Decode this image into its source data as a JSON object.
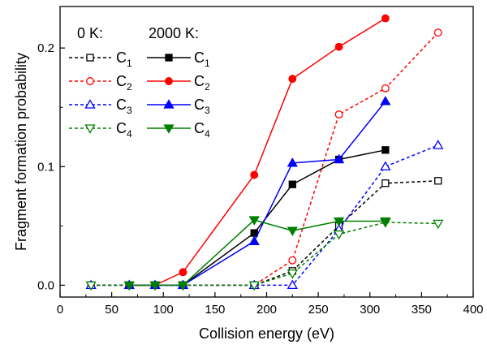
{
  "chart_data": {
    "type": "line",
    "title": "",
    "xlabel": "Collision energy (eV)",
    "ylabel": "Fragment formation probability",
    "xlim": [
      0,
      400
    ],
    "ylim": [
      -0.01,
      0.235
    ],
    "xticks": [
      0,
      50,
      100,
      150,
      200,
      250,
      300,
      350,
      400
    ],
    "xtick_labels": [
      "0",
      "50",
      "100",
      "150",
      "200",
      "250",
      "300",
      "350",
      "400"
    ],
    "yticks": [
      0.0,
      0.1,
      0.2
    ],
    "ytick_labels": [
      "0.0",
      "0.1",
      "0.2"
    ],
    "grid": false,
    "legend": {
      "placement": "top-left",
      "header_0K": "0 K:",
      "header_2000K": "2000 K:"
    },
    "series": [
      {
        "name": "C1",
        "group": "0 K",
        "label_main": "C",
        "label_sub": "1",
        "color": "#000000",
        "style": "dashed",
        "marker": "square",
        "filled": false,
        "x": [
          30,
          67,
          92,
          119,
          188,
          225,
          270,
          315,
          366
        ],
        "y": [
          0.0,
          0.0,
          0.0,
          0.0,
          0.0,
          0.012,
          0.05,
          0.086,
          0.088
        ]
      },
      {
        "name": "C2",
        "group": "0 K",
        "label_main": "C",
        "label_sub": "2",
        "color": "#ff0000",
        "style": "dashed",
        "marker": "circle",
        "filled": false,
        "x": [
          30,
          67,
          92,
          119,
          188,
          225,
          270,
          315,
          366
        ],
        "y": [
          0.0,
          0.0,
          0.0,
          0.0,
          0.0,
          0.021,
          0.144,
          0.166,
          0.213
        ]
      },
      {
        "name": "C3",
        "group": "0 K",
        "label_main": "C",
        "label_sub": "3",
        "color": "#0000ff",
        "style": "dashed",
        "marker": "triangle-up",
        "filled": false,
        "x": [
          30,
          67,
          92,
          119,
          188,
          225,
          270,
          315,
          366
        ],
        "y": [
          0.0,
          0.0,
          0.0,
          0.0,
          0.0,
          0.0,
          0.047,
          0.1,
          0.118
        ]
      },
      {
        "name": "C4",
        "group": "0 K",
        "label_main": "C",
        "label_sub": "4",
        "color": "#008000",
        "style": "dashed",
        "marker": "triangle-down",
        "filled": false,
        "x": [
          30,
          67,
          92,
          119,
          188,
          225,
          270,
          315,
          366
        ],
        "y": [
          0.0,
          0.0,
          0.0,
          0.0,
          0.0,
          0.01,
          0.043,
          0.053,
          0.052
        ]
      },
      {
        "name": "C1",
        "group": "2000 K",
        "label_main": "C",
        "label_sub": "1",
        "color": "#000000",
        "style": "solid",
        "marker": "square",
        "filled": true,
        "x": [
          67,
          92,
          119,
          188,
          225,
          270,
          315
        ],
        "y": [
          0.0,
          0.0,
          0.0,
          0.044,
          0.085,
          0.106,
          0.114
        ]
      },
      {
        "name": "C2",
        "group": "2000 K",
        "label_main": "C",
        "label_sub": "2",
        "color": "#ff0000",
        "style": "solid",
        "marker": "circle",
        "filled": true,
        "x": [
          67,
          92,
          119,
          188,
          225,
          270,
          315
        ],
        "y": [
          0.0,
          0.0,
          0.011,
          0.093,
          0.174,
          0.201,
          0.225
        ]
      },
      {
        "name": "C3",
        "group": "2000 K",
        "label_main": "C",
        "label_sub": "3",
        "color": "#0000ff",
        "style": "solid",
        "marker": "triangle-up",
        "filled": true,
        "x": [
          67,
          92,
          119,
          188,
          225,
          270,
          315
        ],
        "y": [
          0.0,
          0.0,
          0.0,
          0.037,
          0.103,
          0.106,
          0.155
        ]
      },
      {
        "name": "C4",
        "group": "2000 K",
        "label_main": "C",
        "label_sub": "4",
        "color": "#008000",
        "style": "solid",
        "marker": "triangle-down",
        "filled": true,
        "x": [
          67,
          92,
          119,
          188,
          225,
          270,
          315
        ],
        "y": [
          0.0,
          0.0,
          0.0,
          0.055,
          0.046,
          0.054,
          0.054
        ]
      }
    ]
  }
}
